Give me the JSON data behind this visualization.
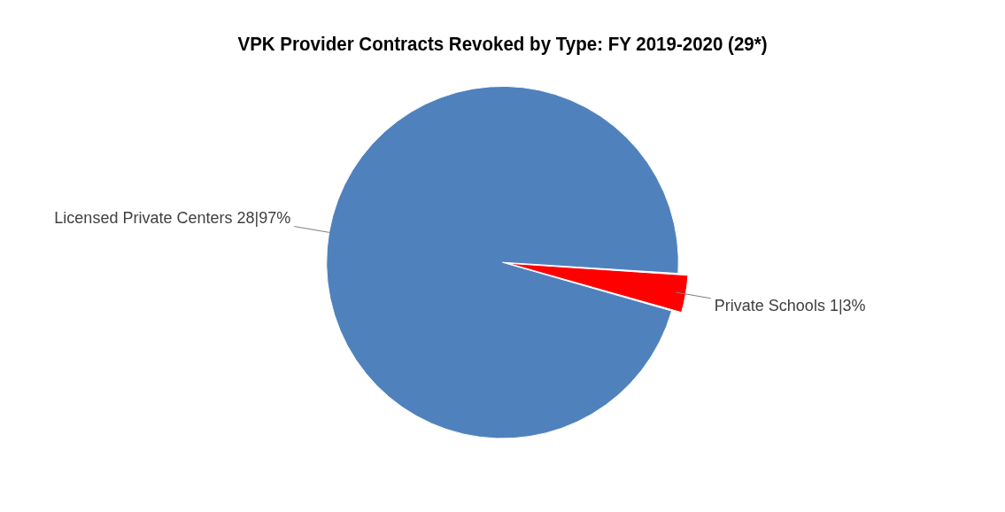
{
  "chart_data": {
    "type": "pie",
    "title": "VPK Provider Contracts Revoked by Type: FY 2019-2020 (29*)",
    "categories": [
      "Licensed Private Centers",
      "Private Schools"
    ],
    "values": [
      28,
      1
    ],
    "value_labels": [
      "28|97%",
      "1|3%"
    ],
    "colors": [
      "#4f81bd",
      "#ff0000"
    ],
    "legend": false
  }
}
